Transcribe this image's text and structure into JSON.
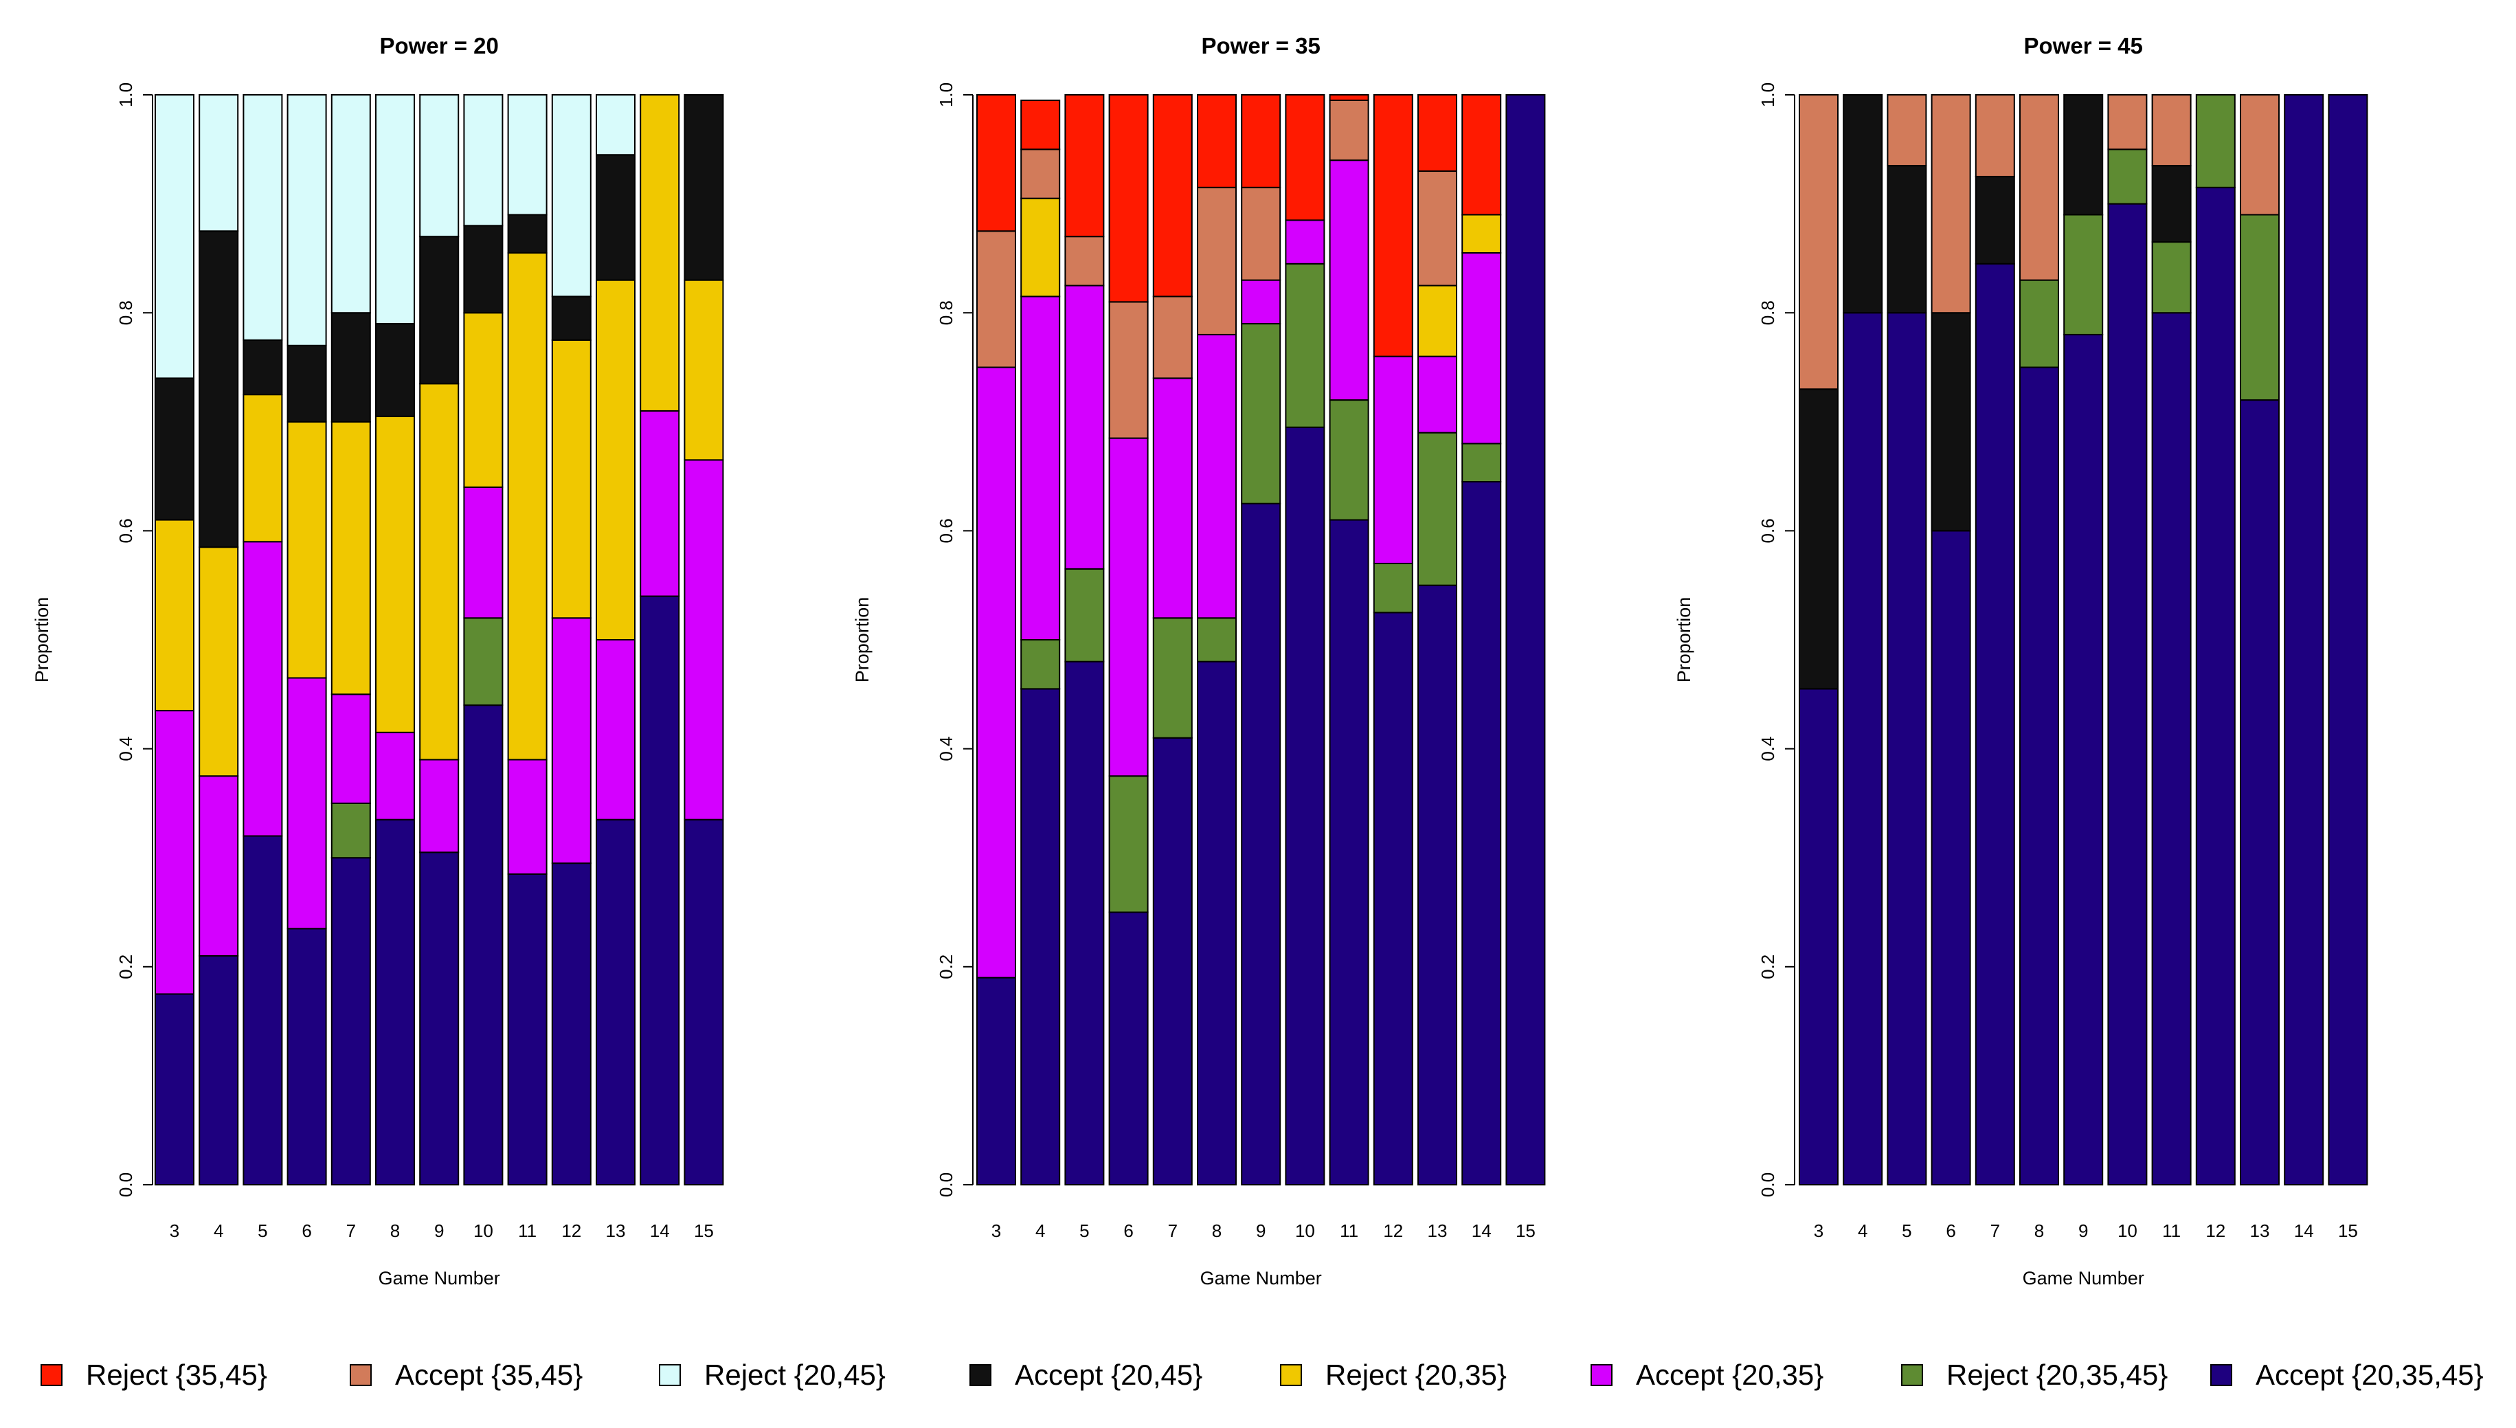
{
  "chart_data": [
    {
      "type": "bar",
      "stacked": true,
      "title": "Power = 20",
      "xlabel": "Game Number",
      "ylabel": "Proportion",
      "ylim": [
        0,
        1
      ],
      "yticks": [
        "0.0",
        "0.2",
        "0.4",
        "0.6",
        "0.8",
        "1.0"
      ],
      "categories": [
        "3",
        "4",
        "5",
        "6",
        "7",
        "8",
        "9",
        "10",
        "11",
        "12",
        "13",
        "14",
        "15"
      ],
      "series": [
        {
          "name": "Accept {20,35,45}",
          "color": "#1e007f",
          "values": [
            0.175,
            0.21,
            0.32,
            0.235,
            0.3,
            0.335,
            0.305,
            0.44,
            0.285,
            0.295,
            0.335,
            0.54,
            0.335
          ]
        },
        {
          "name": "Reject {20,35,45}",
          "color": "#5e8b32",
          "values": [
            0,
            0,
            0,
            0,
            0.05,
            0,
            0,
            0.08,
            0,
            0,
            0,
            0,
            0
          ]
        },
        {
          "name": "Accept {20,35}",
          "color": "#d400ff",
          "values": [
            0.26,
            0.165,
            0.27,
            0.23,
            0.1,
            0.08,
            0.085,
            0.12,
            0.105,
            0.225,
            0.165,
            0.17,
            0.33
          ]
        },
        {
          "name": "Reject {20,35}",
          "color": "#f0c800",
          "values": [
            0.175,
            0.21,
            0.135,
            0.235,
            0.25,
            0.29,
            0.345,
            0.16,
            0.465,
            0.255,
            0.33,
            0.29,
            0.165
          ]
        },
        {
          "name": "Accept {20,45}",
          "color": "#111111",
          "values": [
            0.13,
            0.29,
            0.05,
            0.07,
            0.1,
            0.085,
            0.135,
            0.08,
            0.035,
            0.04,
            0.115,
            0,
            0.17
          ]
        },
        {
          "name": "Reject {20,45}",
          "color": "#d8fbfb",
          "values": [
            0.26,
            0.125,
            0.225,
            0.23,
            0.2,
            0.21,
            0.13,
            0.12,
            0.11,
            0.185,
            0.055,
            0,
            0
          ]
        },
        {
          "name": "Accept {35,45}",
          "color": "#d27b5a",
          "values": [
            0,
            0,
            0,
            0,
            0,
            0,
            0,
            0,
            0,
            0,
            0,
            0,
            0
          ]
        },
        {
          "name": "Reject {35,45}",
          "color": "#ff1a00",
          "values": [
            0,
            0,
            0,
            0,
            0,
            0,
            0,
            0,
            0,
            0,
            0,
            0,
            0
          ]
        }
      ]
    },
    {
      "type": "bar",
      "stacked": true,
      "title": "Power = 35",
      "xlabel": "Game Number",
      "ylabel": "Proportion",
      "ylim": [
        0,
        1
      ],
      "yticks": [
        "0.0",
        "0.2",
        "0.4",
        "0.6",
        "0.8",
        "1.0"
      ],
      "categories": [
        "3",
        "4",
        "5",
        "6",
        "7",
        "8",
        "9",
        "10",
        "11",
        "12",
        "13",
        "14",
        "15"
      ],
      "series": [
        {
          "name": "Accept {20,35,45}",
          "color": "#1e007f",
          "values": [
            0.19,
            0.455,
            0.48,
            0.25,
            0.41,
            0.48,
            0.625,
            0.695,
            0.61,
            0.525,
            0.55,
            0.645,
            1.0
          ]
        },
        {
          "name": "Reject {20,35,45}",
          "color": "#5e8b32",
          "values": [
            0,
            0.045,
            0.085,
            0.125,
            0.11,
            0.04,
            0.165,
            0.15,
            0.11,
            0.045,
            0.14,
            0.035,
            0
          ]
        },
        {
          "name": "Accept {20,35}",
          "color": "#d400ff",
          "values": [
            0.56,
            0.315,
            0.26,
            0.31,
            0.22,
            0.26,
            0.04,
            0.04,
            0.22,
            0.19,
            0.07,
            0.175,
            0
          ]
        },
        {
          "name": "Reject {20,35}",
          "color": "#f0c800",
          "values": [
            0,
            0.09,
            0,
            0,
            0,
            0,
            0,
            0,
            0,
            0,
            0.065,
            0.035,
            0
          ]
        },
        {
          "name": "Accept {20,45}",
          "color": "#111111",
          "values": [
            0,
            0,
            0,
            0,
            0,
            0,
            0,
            0,
            0,
            0,
            0,
            0,
            0
          ]
        },
        {
          "name": "Reject {20,45}",
          "color": "#d8fbfb",
          "values": [
            0,
            0,
            0,
            0,
            0,
            0,
            0,
            0,
            0,
            0,
            0,
            0,
            0
          ]
        },
        {
          "name": "Accept {35,45}",
          "color": "#d27b5a",
          "values": [
            0.125,
            0.045,
            0.045,
            0.125,
            0.075,
            0.135,
            0.085,
            0,
            0.055,
            0,
            0.105,
            0,
            0
          ]
        },
        {
          "name": "Reject {35,45}",
          "color": "#ff1a00",
          "values": [
            0.125,
            0.045,
            0.13,
            0.19,
            0.185,
            0.085,
            0.085,
            0.115,
            0.005,
            0.24,
            0.07,
            0.11,
            0
          ]
        }
      ]
    },
    {
      "type": "bar",
      "stacked": true,
      "title": "Power = 45",
      "xlabel": "Game Number",
      "ylabel": "Proportion",
      "ylim": [
        0,
        1
      ],
      "yticks": [
        "0.0",
        "0.2",
        "0.4",
        "0.6",
        "0.8",
        "1.0"
      ],
      "categories": [
        "3",
        "4",
        "5",
        "6",
        "7",
        "8",
        "9",
        "10",
        "11",
        "12",
        "13",
        "14",
        "15"
      ],
      "series": [
        {
          "name": "Accept {20,35,45}",
          "color": "#1e007f",
          "values": [
            0.455,
            0.8,
            0.8,
            0.6,
            0.845,
            0.75,
            0.78,
            0.9,
            0.8,
            0.915,
            0.72,
            1.0,
            1.0
          ]
        },
        {
          "name": "Reject {20,35,45}",
          "color": "#5e8b32",
          "values": [
            0,
            0,
            0,
            0,
            0,
            0.08,
            0.11,
            0.05,
            0.065,
            0.085,
            0.17,
            0,
            0
          ]
        },
        {
          "name": "Accept {20,35}",
          "color": "#d400ff",
          "values": [
            0,
            0,
            0,
            0,
            0,
            0,
            0,
            0,
            0,
            0,
            0,
            0,
            0
          ]
        },
        {
          "name": "Reject {20,35}",
          "color": "#f0c800",
          "values": [
            0,
            0,
            0,
            0,
            0,
            0,
            0,
            0,
            0,
            0,
            0,
            0,
            0
          ]
        },
        {
          "name": "Accept {20,45}",
          "color": "#111111",
          "values": [
            0.275,
            0.2,
            0.135,
            0.2,
            0.08,
            0,
            0.11,
            0,
            0.07,
            0,
            0,
            0,
            0
          ]
        },
        {
          "name": "Reject {20,45}",
          "color": "#d8fbfb",
          "values": [
            0,
            0,
            0,
            0,
            0,
            0,
            0,
            0,
            0,
            0,
            0,
            0,
            0
          ]
        },
        {
          "name": "Accept {35,45}",
          "color": "#d27b5a",
          "values": [
            0.27,
            0,
            0.065,
            0.2,
            0.075,
            0.17,
            0,
            0.05,
            0.065,
            0,
            0.11,
            0,
            0
          ]
        },
        {
          "name": "Reject {35,45}",
          "color": "#ff1a00",
          "values": [
            0,
            0,
            0,
            0,
            0,
            0,
            0,
            0,
            0,
            0,
            0,
            0,
            0
          ]
        }
      ]
    }
  ],
  "legend": [
    {
      "label": "Reject {35,45}",
      "color": "#ff1a00"
    },
    {
      "label": "Accept {35,45}",
      "color": "#d27b5a"
    },
    {
      "label": "Reject {20,45}",
      "color": "#d8fbfb"
    },
    {
      "label": "Accept {20,45}",
      "color": "#111111"
    },
    {
      "label": "Reject {20,35}",
      "color": "#f0c800"
    },
    {
      "label": "Accept {20,35}",
      "color": "#d400ff"
    },
    {
      "label": "Reject {20,35,45}",
      "color": "#5e8b32"
    },
    {
      "label": "Accept {20,35,45}",
      "color": "#1e007f"
    }
  ]
}
